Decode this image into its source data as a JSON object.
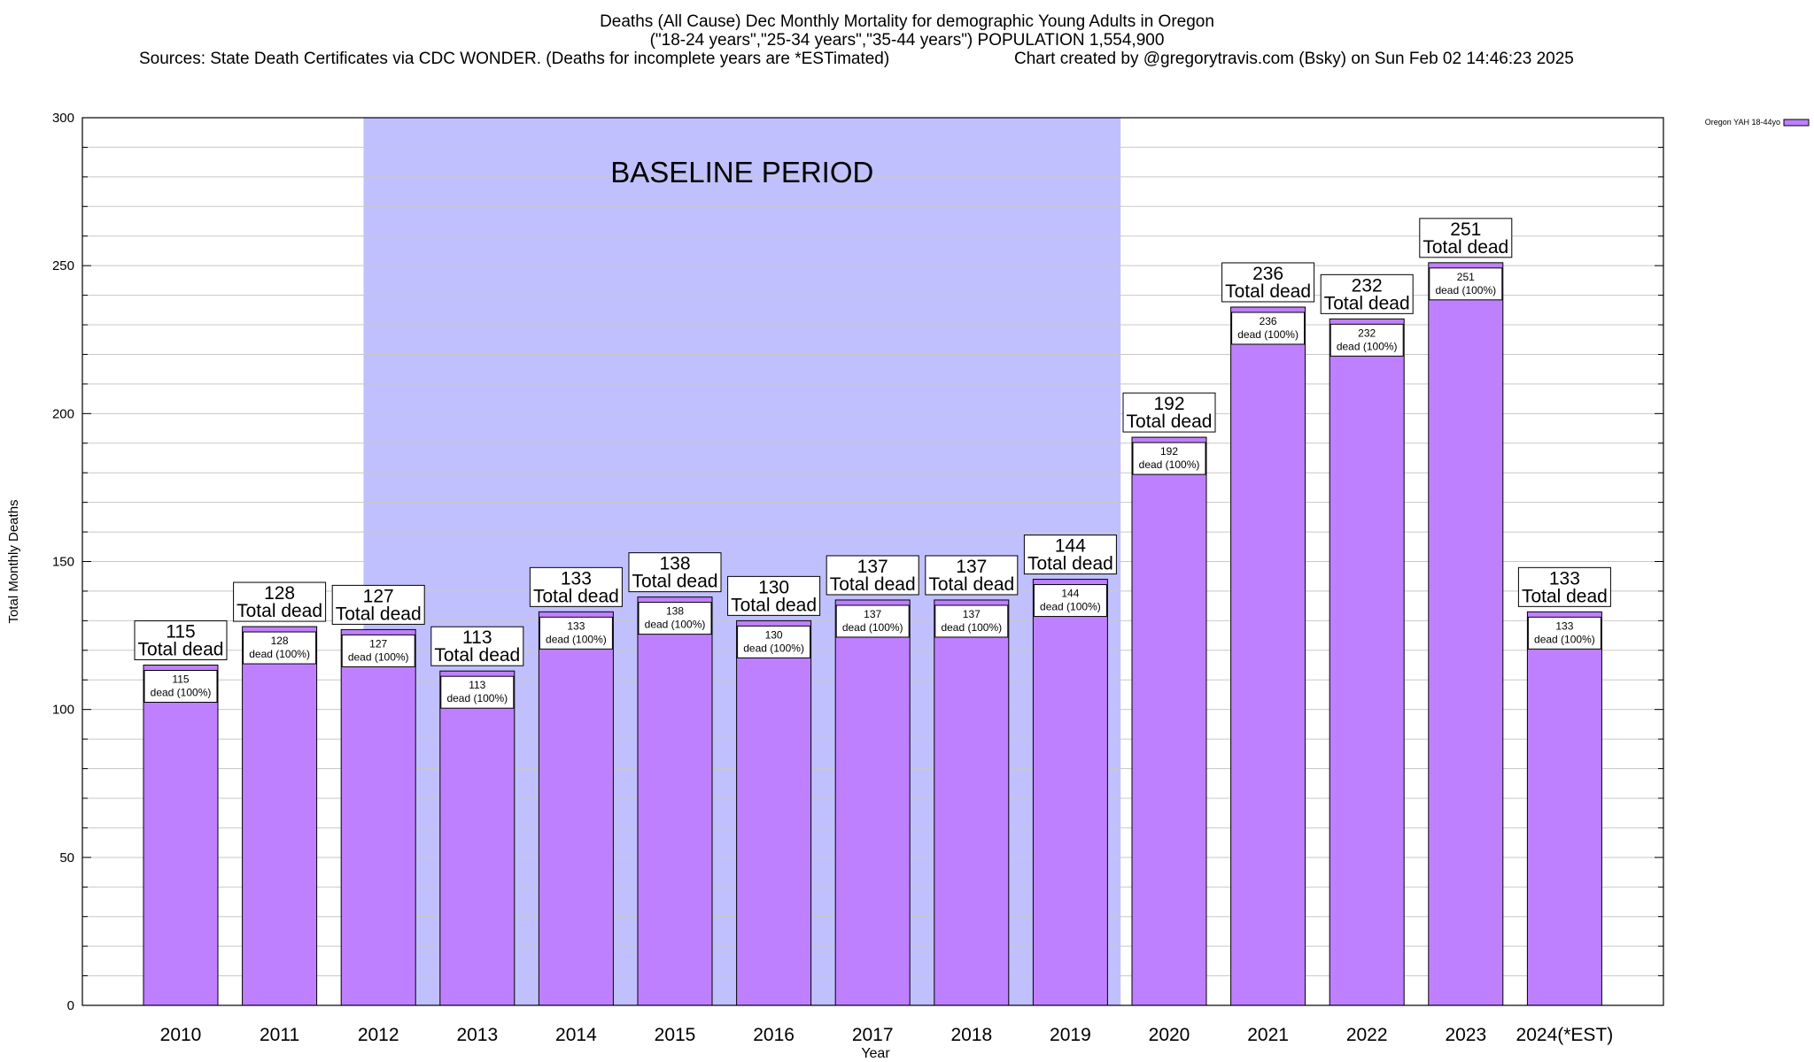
{
  "chart_data": {
    "type": "bar",
    "title": "Deaths (All Cause) Dec Monthly Mortality for demographic Young Adults in Oregon",
    "subtitle": "(\"18-24 years\",\"25-34 years\",\"35-44 years\") POPULATION 1,554,900",
    "source_note": "Sources: State Death Certificates via CDC WONDER. (Deaths for incomplete years are *ESTimated)",
    "credit": "Chart created by @gregorytravis.com (Bsky) on Sun Feb 02 14:46:23 2025",
    "xlabel": "Year",
    "ylabel": "Total Monthly Deaths",
    "ylim": [
      0,
      300
    ],
    "yticks": [
      "0",
      "50",
      "100",
      "150",
      "200",
      "250",
      "300"
    ],
    "grid": true,
    "legend_position": "top-right",
    "categories": [
      "2010",
      "2011",
      "2012",
      "2013",
      "2014",
      "2015",
      "2016",
      "2017",
      "2018",
      "2019",
      "2020",
      "2021",
      "2022",
      "2023",
      "2024(*EST)"
    ],
    "series": [
      {
        "name": "Oregon YAH 18-44yo",
        "color": "#bf80ff",
        "values": [
          115,
          128,
          127,
          113,
          133,
          138,
          130,
          137,
          137,
          144,
          192,
          236,
          232,
          251,
          133
        ]
      }
    ],
    "top_label_suffix": "Total dead",
    "inner_label_suffix": "dead (100%)",
    "baseline_period": {
      "label": "BASELINE PERIOD",
      "start_category": "2012",
      "end_category": "2019",
      "color": "#c0c0ff"
    }
  }
}
